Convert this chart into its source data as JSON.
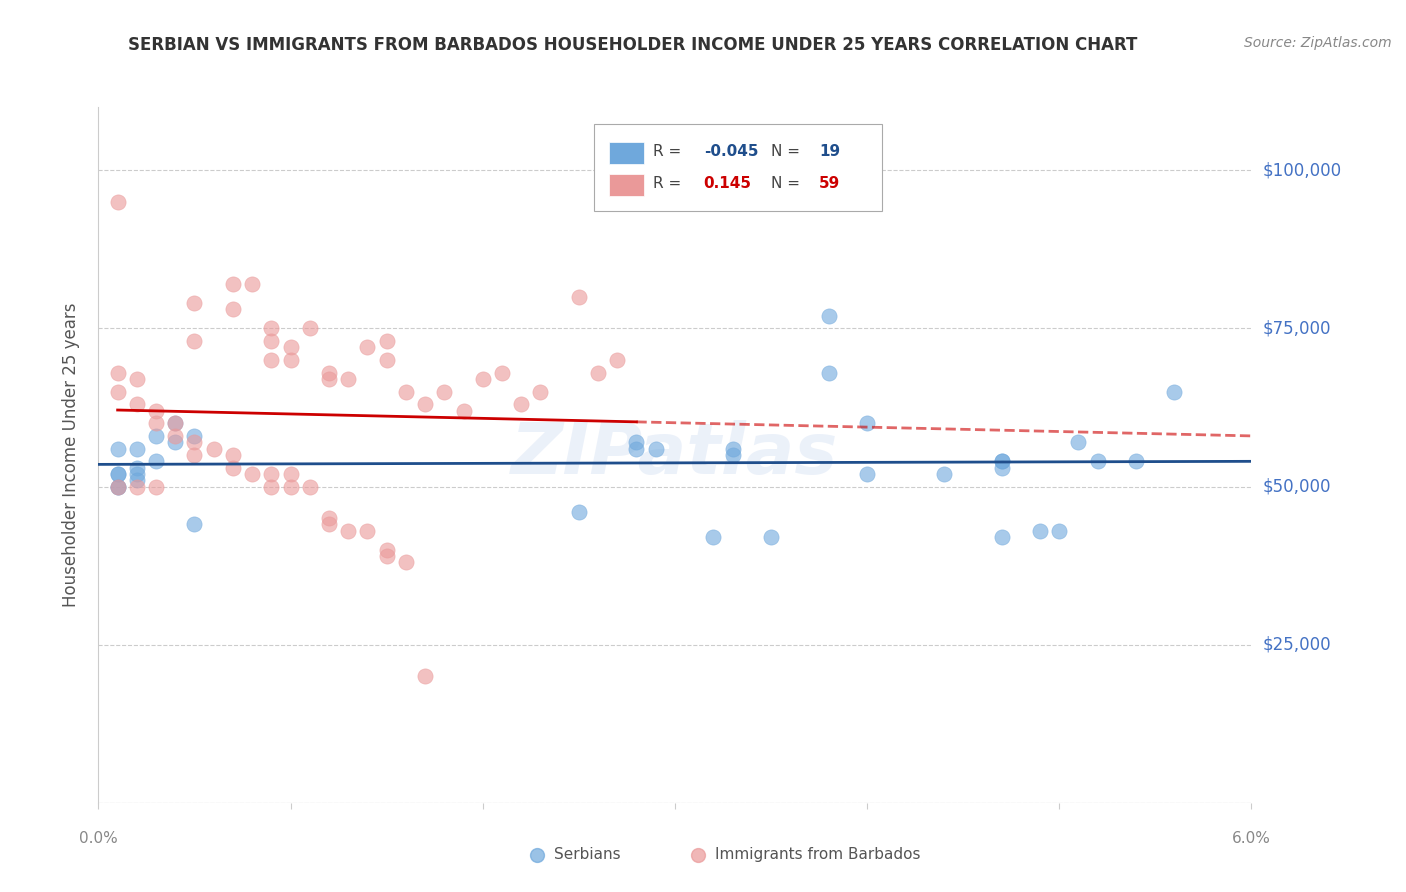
{
  "title": "SERBIAN VS IMMIGRANTS FROM BARBADOS HOUSEHOLDER INCOME UNDER 25 YEARS CORRELATION CHART",
  "source": "Source: ZipAtlas.com",
  "ylabel": "Householder Income Under 25 years",
  "xlim": [
    0.0,
    0.06
  ],
  "ylim": [
    0,
    110000
  ],
  "yticks": [
    0,
    25000,
    50000,
    75000,
    100000
  ],
  "watermark": "ZIPatlas",
  "serbian_color": "#6fa8dc",
  "barbados_color": "#ea9999",
  "serbian_line_color": "#1f4e8c",
  "barbados_line_color": "#cc0000",
  "serbian_scatter": [
    [
      0.001,
      52000
    ],
    [
      0.001,
      56000
    ],
    [
      0.002,
      53000
    ],
    [
      0.002,
      56000
    ],
    [
      0.003,
      54000
    ],
    [
      0.003,
      58000
    ],
    [
      0.004,
      57000
    ],
    [
      0.004,
      60000
    ],
    [
      0.005,
      58000
    ],
    [
      0.005,
      44000
    ],
    [
      0.028,
      56000
    ],
    [
      0.028,
      57000
    ],
    [
      0.029,
      56000
    ],
    [
      0.033,
      55000
    ],
    [
      0.033,
      56000
    ],
    [
      0.038,
      77000
    ],
    [
      0.047,
      54000
    ],
    [
      0.047,
      42000
    ],
    [
      0.047,
      53000
    ],
    [
      0.047,
      54000
    ],
    [
      0.051,
      57000
    ],
    [
      0.052,
      54000
    ],
    [
      0.054,
      54000
    ],
    [
      0.025,
      46000
    ],
    [
      0.032,
      42000
    ],
    [
      0.049,
      43000
    ],
    [
      0.05,
      43000
    ],
    [
      0.038,
      68000
    ],
    [
      0.001,
      50000
    ],
    [
      0.001,
      52000
    ],
    [
      0.002,
      52000
    ],
    [
      0.002,
      51000
    ],
    [
      0.001,
      50000
    ],
    [
      0.044,
      52000
    ],
    [
      0.056,
      65000
    ],
    [
      0.04,
      60000
    ],
    [
      0.04,
      52000
    ],
    [
      0.035,
      42000
    ]
  ],
  "barbados_scatter": [
    [
      0.001,
      95000
    ],
    [
      0.005,
      79000
    ],
    [
      0.005,
      73000
    ],
    [
      0.007,
      82000
    ],
    [
      0.007,
      78000
    ],
    [
      0.008,
      82000
    ],
    [
      0.009,
      75000
    ],
    [
      0.009,
      73000
    ],
    [
      0.009,
      70000
    ],
    [
      0.01,
      72000
    ],
    [
      0.01,
      70000
    ],
    [
      0.011,
      75000
    ],
    [
      0.012,
      68000
    ],
    [
      0.012,
      67000
    ],
    [
      0.013,
      67000
    ],
    [
      0.014,
      72000
    ],
    [
      0.015,
      73000
    ],
    [
      0.015,
      70000
    ],
    [
      0.016,
      65000
    ],
    [
      0.017,
      63000
    ],
    [
      0.018,
      65000
    ],
    [
      0.019,
      62000
    ],
    [
      0.02,
      67000
    ],
    [
      0.021,
      68000
    ],
    [
      0.022,
      63000
    ],
    [
      0.023,
      65000
    ],
    [
      0.025,
      80000
    ],
    [
      0.026,
      68000
    ],
    [
      0.027,
      70000
    ],
    [
      0.001,
      68000
    ],
    [
      0.001,
      65000
    ],
    [
      0.002,
      67000
    ],
    [
      0.002,
      63000
    ],
    [
      0.003,
      62000
    ],
    [
      0.003,
      60000
    ],
    [
      0.004,
      60000
    ],
    [
      0.004,
      58000
    ],
    [
      0.005,
      57000
    ],
    [
      0.005,
      55000
    ],
    [
      0.006,
      56000
    ],
    [
      0.007,
      55000
    ],
    [
      0.007,
      53000
    ],
    [
      0.008,
      52000
    ],
    [
      0.009,
      52000
    ],
    [
      0.009,
      50000
    ],
    [
      0.01,
      52000
    ],
    [
      0.01,
      50000
    ],
    [
      0.011,
      50000
    ],
    [
      0.012,
      45000
    ],
    [
      0.012,
      44000
    ],
    [
      0.013,
      43000
    ],
    [
      0.014,
      43000
    ],
    [
      0.015,
      40000
    ],
    [
      0.015,
      39000
    ],
    [
      0.016,
      38000
    ],
    [
      0.017,
      20000
    ],
    [
      0.001,
      50000
    ],
    [
      0.002,
      50000
    ],
    [
      0.003,
      50000
    ]
  ],
  "grid_color": "#cccccc",
  "background_color": "#ffffff",
  "title_color": "#333333",
  "axis_label_color": "#555555",
  "right_label_color": "#4472c4",
  "tick_color": "#888888"
}
